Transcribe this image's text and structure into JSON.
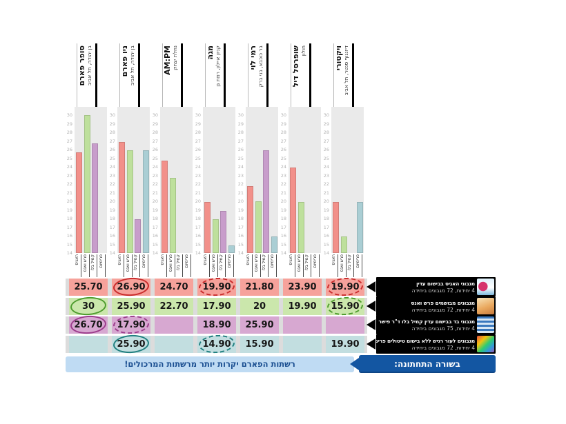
{
  "banner": {
    "lead": "בשורה התחתונה:",
    "message": "רשתות הפארם יקרות יותר מרשתות המרכולים!"
  },
  "products": [
    {
      "name": "מגבוני האגיס בבישום עדין",
      "details": "4 יחידות, 72 מגבונים ביחידה",
      "thumb": "huggies-wipes",
      "color_key": "salmon"
    },
    {
      "name": "מגבונים מבושמים פרש ואנס",
      "details": "4 יחידות, 72 מגבונים ביחידה",
      "thumb": "fresh-ones-wipes",
      "color_key": "green"
    },
    {
      "name": "מגבוני בד בבישום עדין קמיל בלו ד\"ר פישר",
      "details": "4 יחידות, 75 מגבונים ביחידה",
      "thumb": "dr-fischer-wipes",
      "color_key": "purple"
    },
    {
      "name": "מגבונים לעור רגיש ללא בישום טיטולים פרימיום",
      "details": "4 יחידות, 72 מגבונים ביחידה",
      "thumb": "premium-wipes",
      "color_key": "teal"
    }
  ],
  "colors": {
    "salmon": {
      "bar": "#F2908A",
      "cell": "#F6A29B",
      "circle": "#C92B2B"
    },
    "green": {
      "bar": "#BEE09C",
      "cell": "#CBE7AC",
      "circle": "#4E9C2E"
    },
    "purple": {
      "bar": "#C89DCB",
      "cell": "#D7A8D1",
      "circle": "#9C3C8C"
    },
    "teal": {
      "bar": "#AACED4",
      "cell": "#C2DEE0",
      "circle": "#1F7F7F"
    }
  },
  "chart_data": {
    "type": "bar",
    "ylim": [
      14,
      31
    ],
    "yticks": [
      14,
      15,
      16,
      17,
      18,
      19,
      20,
      21,
      22,
      23,
      24,
      25,
      26,
      27,
      28,
      29,
      30
    ],
    "grid": false,
    "legend": "none",
    "bar_labels": [
      "האגיס",
      "פרש ואנס",
      "קמיל בלו",
      "פרימיום"
    ],
    "groups": [
      {
        "store": "סופר פארם",
        "branch": "בן יהודה, תל אביב",
        "values": [
          25.7,
          30,
          26.7,
          null
        ]
      },
      {
        "store": "ניו פארם",
        "branch": "בן יהודה, תל אביב",
        "values": [
          26.9,
          25.9,
          17.9,
          25.9
        ]
      },
      {
        "store": "AM:PM",
        "branch": "נחלת יצחק",
        "values": [
          24.7,
          22.7,
          null,
          null
        ]
      },
      {
        "store": "מגה",
        "branch": "קניון איילון, רמת גן",
        "values": [
          19.9,
          17.9,
          18.9,
          14.9
        ]
      },
      {
        "store": "רמי לוי",
        "branch": "בר כוכבא, בני ברק",
        "values": [
          21.8,
          20,
          25.9,
          15.9
        ]
      },
      {
        "store": "שופרסל דיל",
        "branch": "חולון",
        "values": [
          23.9,
          19.9,
          null,
          null
        ]
      },
      {
        "store": "ויקטורי",
        "branch": "דיזנגוף סנטר, תל אביב",
        "values": [
          19.9,
          15.9,
          null,
          19.9
        ]
      }
    ]
  },
  "price_table": {
    "rows": [
      {
        "color_key": "salmon",
        "cells": [
          "25.70",
          "26.90",
          "24.70",
          "19.90",
          "21.80",
          "23.90",
          "19.90"
        ],
        "circles": [
          {
            "col": 1,
            "style": "solid"
          },
          {
            "col": 3,
            "style": "dotted"
          },
          {
            "col": 6,
            "style": "dotted"
          }
        ]
      },
      {
        "color_key": "green",
        "cells": [
          "30",
          "25.90",
          "22.70",
          "17.90",
          "20",
          "19.90",
          "15.90"
        ],
        "circles": [
          {
            "col": 0,
            "style": "solid"
          },
          {
            "col": 6,
            "style": "dotted"
          }
        ]
      },
      {
        "color_key": "purple",
        "cells": [
          "26.70",
          "17.90",
          "",
          "18.90",
          "25.90",
          "",
          ""
        ],
        "circles": [
          {
            "col": 0,
            "style": "solid"
          },
          {
            "col": 1,
            "style": "dotted"
          }
        ]
      },
      {
        "color_key": "teal",
        "cells": [
          "",
          "25.90",
          "",
          "14.90",
          "15.90",
          "",
          "19.90"
        ],
        "circles": [
          {
            "col": 1,
            "style": "solid"
          },
          {
            "col": 3,
            "style": "dotted"
          }
        ]
      }
    ]
  }
}
